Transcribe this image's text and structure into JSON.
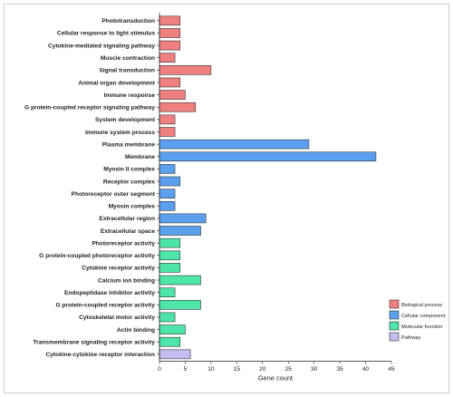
{
  "chart_data": {
    "type": "bar",
    "orientation": "horizontal",
    "xlabel": "Gene count",
    "xlim": [
      0,
      45
    ],
    "xticks": [
      0,
      5,
      10,
      15,
      20,
      25,
      30,
      35,
      40,
      45
    ],
    "grid": false,
    "legend_position": "bottom-right",
    "groups": [
      {
        "name": "Biological process",
        "color": "#f08080"
      },
      {
        "name": "Cellular component",
        "color": "#5aa0ee"
      },
      {
        "name": "Molecular function",
        "color": "#4de6a8"
      },
      {
        "name": "Pathway",
        "color": "#c4bef0"
      }
    ],
    "categories": [
      "Phototransduction",
      "Cellular response to light stimulus",
      "Cytokine-mediated signaling pathway",
      "Muscle contraction",
      "Signal transduction",
      "Animal organ development",
      "Immune response",
      "G protein-coupled receptor signaling pathway",
      "System development",
      "Immune system process",
      "Plasma membrane",
      "Membrane",
      "Myosin II complex",
      "Receptor complex",
      "Photoreceptor outer segment",
      "Myosin complex",
      "Extracellular region",
      "Extracellular space",
      "Photoreceptor activity",
      "G protein-coupled photoreceptor activity",
      "Cytokine receptor activity",
      "Calcium ion binding",
      "Endopeptidase inhibitor activity",
      "G protein-coupled receptor activity",
      "Cytoskeletal motor activity",
      "Actin binding",
      "Transmembrane signaling receptor activity",
      "Cytokine-cytokine receptor interaction"
    ],
    "values": [
      4,
      4,
      4,
      3,
      10,
      4,
      5,
      7,
      3,
      3,
      29,
      42,
      3,
      4,
      3,
      3,
      9,
      8,
      4,
      4,
      4,
      8,
      3,
      8,
      3,
      5,
      4,
      6
    ],
    "group_index": [
      0,
      0,
      0,
      0,
      0,
      0,
      0,
      0,
      0,
      0,
      1,
      1,
      1,
      1,
      1,
      1,
      1,
      1,
      2,
      2,
      2,
      2,
      2,
      2,
      2,
      2,
      2,
      3
    ]
  }
}
